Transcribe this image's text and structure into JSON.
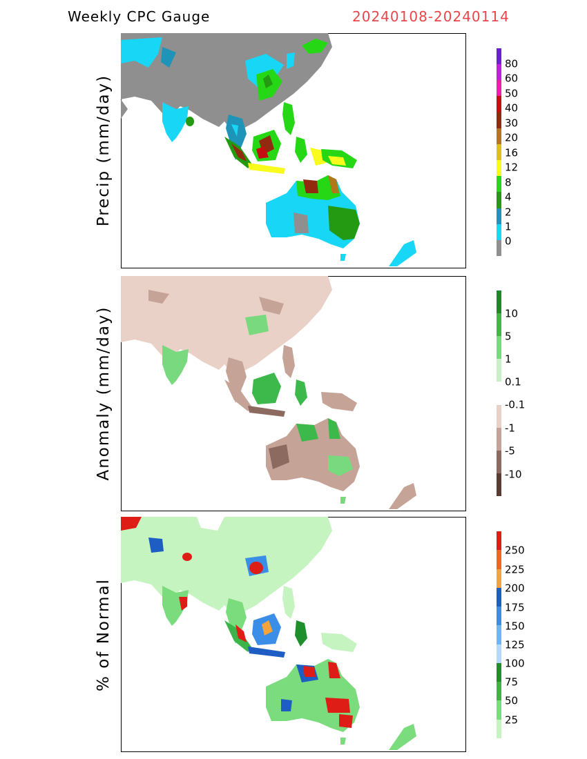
{
  "header": {
    "title": "Weekly CPC Gauge",
    "date_range": "20240108-20240114"
  },
  "panels": [
    {
      "ylabel": "Precip (mm/day)",
      "colors": [
        "#6a1fd4",
        "#c21ee0",
        "#ee1ea6",
        "#c40f12",
        "#922a10",
        "#b2771b",
        "#ddc21b",
        "#f8fb1c",
        "#25d714",
        "#249a12",
        "#1d94b8",
        "#18d6f6",
        "#8f8f8f"
      ],
      "labels": [
        "80",
        "60",
        "50",
        "40",
        "30",
        "20",
        "16",
        "12",
        "8",
        "4",
        "2",
        "1",
        "0"
      ],
      "colors_legend": [
        "#6a1fd4",
        "#c21ee0",
        "#ee1ea6",
        "#c40f12",
        "#922a10",
        "#b2771b",
        "#ddc21b",
        "#f8fb1c",
        "#25d714",
        "#249a12",
        "#1d94b8",
        "#18d6f6",
        "#8f8f8f"
      ]
    },
    {
      "ylabel": "Anomaly (mm/day)",
      "labels": [
        "10",
        "5",
        "1",
        "0.1",
        "-0.1",
        "-1",
        "-5",
        "-10"
      ],
      "colors_legend": [
        "#1c8a2b",
        "#3db84a",
        "#79d97f",
        "#c8f0c4",
        "#ffffff",
        "#e9d1c7",
        "#c6a397",
        "#8d6a60",
        "#5a3b32"
      ]
    },
    {
      "ylabel": "% of Normal",
      "labels": [
        "250",
        "225",
        "200",
        "175",
        "150",
        "125",
        "100",
        "75",
        "50",
        "25"
      ],
      "colors_legend": [
        "#df1d17",
        "#f2661b",
        "#f7a33b",
        "#1d5dc4",
        "#3a8ee8",
        "#72b3f4",
        "#b6d9fa",
        "#1d8f2b",
        "#3bb54a",
        "#7bdc7e",
        "#c5f4c0"
      ]
    }
  ]
}
